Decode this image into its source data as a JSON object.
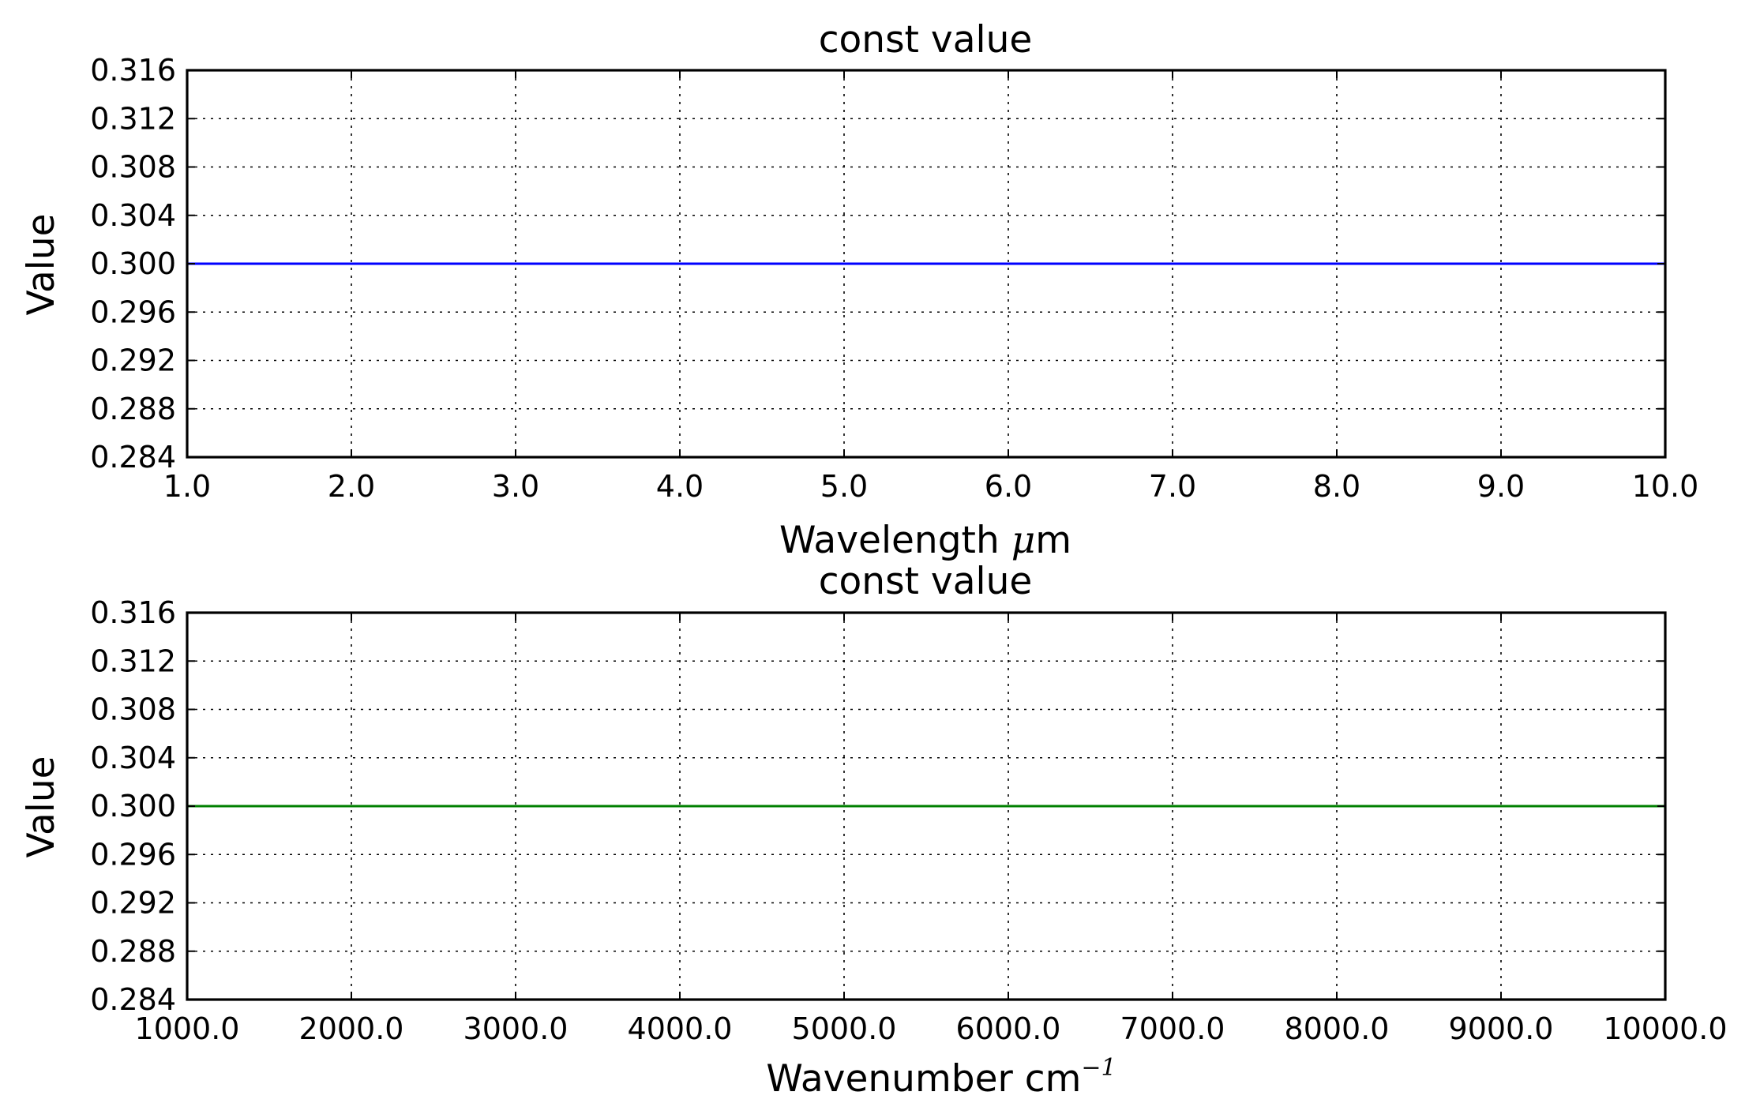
{
  "chart_data": [
    {
      "type": "line",
      "title": "const value",
      "xlabel": "Wavelength μm",
      "xlabel_main": "Wavelength ",
      "xlabel_unit": "μ",
      "xlabel_suffix": "m",
      "ylabel": "Value",
      "xlim": [
        1.0,
        10.0
      ],
      "ylim": [
        0.284,
        0.316
      ],
      "x_ticks": [
        1.0,
        2.0,
        3.0,
        4.0,
        5.0,
        6.0,
        7.0,
        8.0,
        9.0,
        10.0
      ],
      "x_tick_labels": [
        "1.0",
        "2.0",
        "3.0",
        "4.0",
        "5.0",
        "6.0",
        "7.0",
        "8.0",
        "9.0",
        "10.0"
      ],
      "y_ticks": [
        0.284,
        0.288,
        0.292,
        0.296,
        0.3,
        0.304,
        0.308,
        0.312,
        0.316
      ],
      "y_tick_labels": [
        "0.284",
        "0.288",
        "0.292",
        "0.296",
        "0.300",
        "0.304",
        "0.308",
        "0.312",
        "0.316"
      ],
      "grid": true,
      "series": [
        {
          "color": "#0000ff",
          "x": [
            1.0,
            10.0
          ],
          "y": [
            0.3,
            0.3
          ]
        }
      ]
    },
    {
      "type": "line",
      "title": "const value",
      "xlabel": "Wavenumber cm−1",
      "xlabel_main": "Wavenumber cm",
      "xlabel_sup": "−1",
      "ylabel": "Value",
      "xlim": [
        1000.0,
        10000.0
      ],
      "ylim": [
        0.284,
        0.316
      ],
      "x_ticks": [
        1000.0,
        2000.0,
        3000.0,
        4000.0,
        5000.0,
        6000.0,
        7000.0,
        8000.0,
        9000.0,
        10000.0
      ],
      "x_tick_labels": [
        "1000.0",
        "2000.0",
        "3000.0",
        "4000.0",
        "5000.0",
        "6000.0",
        "7000.0",
        "8000.0",
        "9000.0",
        "10000.0"
      ],
      "y_ticks": [
        0.284,
        0.288,
        0.292,
        0.296,
        0.3,
        0.304,
        0.308,
        0.312,
        0.316
      ],
      "y_tick_labels": [
        "0.284",
        "0.288",
        "0.292",
        "0.296",
        "0.300",
        "0.304",
        "0.308",
        "0.312",
        "0.316"
      ],
      "grid": true,
      "series": [
        {
          "color": "#008000",
          "x": [
            1000.0,
            10000.0
          ],
          "y": [
            0.3,
            0.3
          ]
        }
      ]
    }
  ]
}
